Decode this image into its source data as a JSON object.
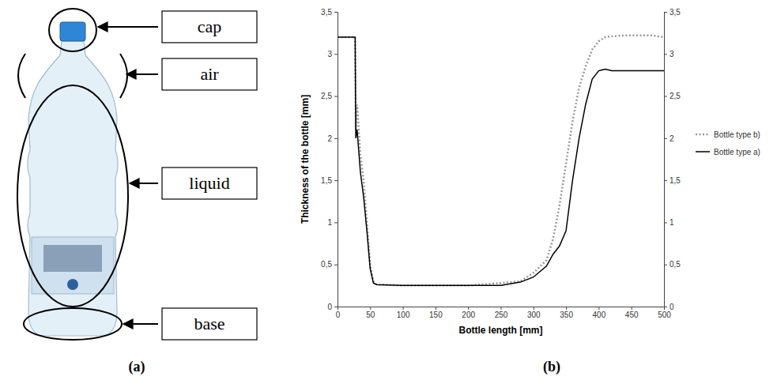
{
  "figure_a": {
    "panel_label": "(a)",
    "labels": [
      "cap",
      "air",
      "liquid",
      "base"
    ]
  },
  "chart_data": {
    "type": "line",
    "panel_label": "(b)",
    "x_label": "Bottle length [mm]",
    "y_label": "Thickness of the bottle [mm]",
    "x": [
      0,
      25,
      27,
      28,
      30,
      35,
      40,
      45,
      50,
      55,
      60,
      100,
      150,
      200,
      250,
      280,
      300,
      320,
      330,
      340,
      350,
      360,
      370,
      380,
      390,
      400,
      410,
      420,
      440,
      460,
      480,
      500
    ],
    "series": [
      {
        "name": "Bottle type b)",
        "color": "#999999",
        "line_style": "dotted",
        "values": [
          3.2,
          3.2,
          3.2,
          2.1,
          2.4,
          1.8,
          1.5,
          1.0,
          0.5,
          0.3,
          0.26,
          0.25,
          0.25,
          0.25,
          0.28,
          0.3,
          0.4,
          0.55,
          0.8,
          1.2,
          1.7,
          2.2,
          2.6,
          2.85,
          3.05,
          3.15,
          3.2,
          3.21,
          3.22,
          3.22,
          3.22,
          3.2
        ]
      },
      {
        "name": "Bottle type a)",
        "color": "#000000",
        "line_style": "solid",
        "values": [
          3.2,
          3.2,
          3.2,
          2.0,
          2.1,
          1.6,
          1.3,
          0.9,
          0.45,
          0.28,
          0.26,
          0.25,
          0.25,
          0.25,
          0.25,
          0.29,
          0.35,
          0.48,
          0.62,
          0.72,
          0.9,
          1.5,
          2.0,
          2.4,
          2.7,
          2.8,
          2.82,
          2.8,
          2.8,
          2.8,
          2.8,
          2.8
        ]
      }
    ],
    "xlim": [
      0,
      500
    ],
    "xticks": [
      0,
      50,
      100,
      150,
      200,
      250,
      300,
      350,
      400,
      450,
      500
    ],
    "ylim": [
      0,
      3.5
    ],
    "yticks": [
      0,
      {
        "value": 0.5,
        "label": "0,5"
      },
      1,
      {
        "value": 1.5,
        "label": "1,5"
      },
      2,
      {
        "value": 2.5,
        "label": "2,5"
      },
      3,
      {
        "value": 3.5,
        "label": "3,5"
      }
    ],
    "y2lim": [
      0,
      3.5
    ],
    "y2ticks": [
      0,
      {
        "value": 0.5,
        "label": "0,5"
      },
      1,
      {
        "value": 1.5,
        "label": "1,5"
      },
      2,
      {
        "value": 2.5,
        "label": "2,5"
      },
      3,
      {
        "value": 3.5,
        "label": "3,5"
      }
    ],
    "grid": false,
    "legend": "right"
  }
}
